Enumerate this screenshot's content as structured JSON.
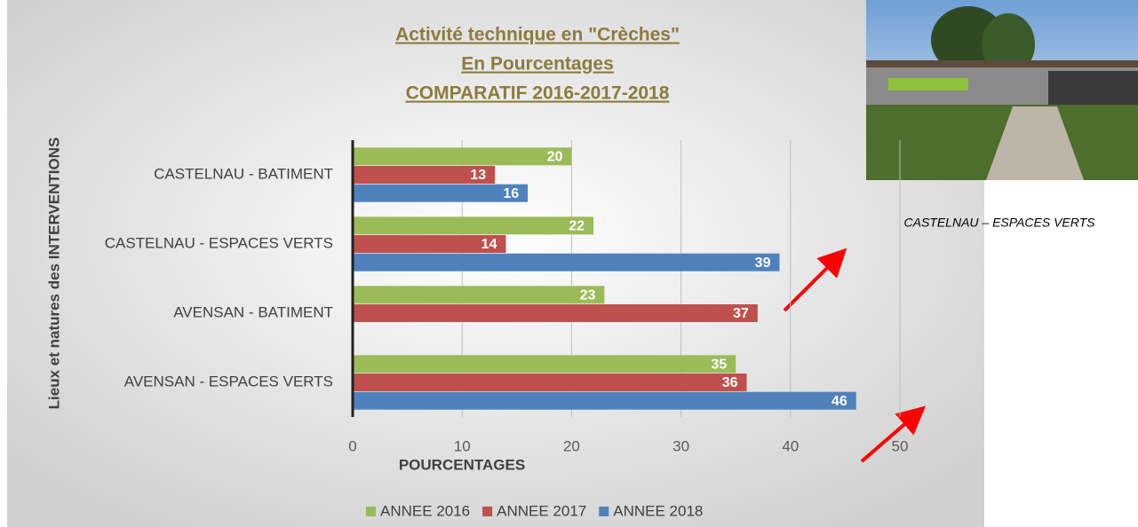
{
  "chart_data": {
    "type": "bar",
    "orientation": "horizontal",
    "title": [
      "Activité technique en \"Crèches\"",
      "En Pourcentages",
      "COMPARATIF 2016-2017-2018"
    ],
    "x_label": "POURCENTAGES",
    "y_label": "Lieux et natures des INTERVENTIONS",
    "categories": [
      "CASTELNAU - BATIMENT",
      "CASTELNAU - ESPACES VERTS",
      "AVENSAN - BATIMENT",
      "AVENSAN - ESPACES VERTS"
    ],
    "series": [
      {
        "name": "ANNEE 2016",
        "color": "#9bbb59",
        "values": [
          20,
          22,
          23,
          35
        ]
      },
      {
        "name": "ANNEE 2017",
        "color": "#c0504d",
        "values": [
          13,
          14,
          37,
          36
        ]
      },
      {
        "name": "ANNEE 2018",
        "color": "#4f81bd",
        "values": [
          16,
          39,
          null,
          46
        ]
      }
    ],
    "xlim": [
      0,
      50
    ],
    "xticks": [
      0,
      10,
      20,
      30,
      40,
      50
    ],
    "grid": true,
    "legend": "bottom"
  },
  "caption": "CASTELNAU – ESPACES VERTS"
}
